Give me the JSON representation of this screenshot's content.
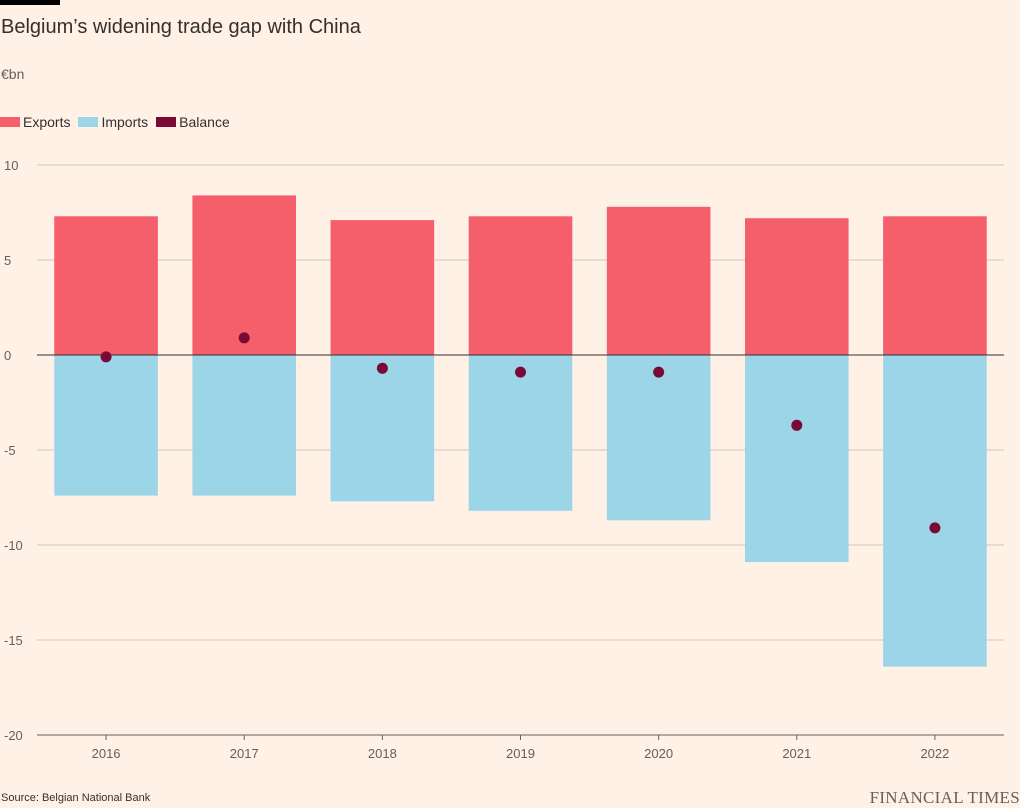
{
  "title": "Belgium’s widening trade gap with China",
  "unit": "€bn",
  "source": "Source: Belgian National Bank",
  "brand": "FINANCIAL TIMES",
  "legend": [
    {
      "label": "Exports",
      "color": "#F55F6C"
    },
    {
      "label": "Imports",
      "color": "#9DD5E8"
    },
    {
      "label": "Balance",
      "color": "#7A0A35"
    }
  ],
  "chart_data": {
    "type": "bar",
    "categories": [
      "2016",
      "2017",
      "2018",
      "2019",
      "2020",
      "2021",
      "2022"
    ],
    "series": [
      {
        "name": "Exports",
        "values": [
          7.3,
          8.4,
          7.1,
          7.3,
          7.8,
          7.2,
          7.3
        ],
        "color": "#F55F6C"
      },
      {
        "name": "Imports",
        "values": [
          -7.4,
          -7.4,
          -7.7,
          -8.2,
          -8.7,
          -10.9,
          -16.4
        ],
        "color": "#9DD5E8"
      },
      {
        "name": "Balance",
        "values": [
          -0.1,
          0.9,
          -0.7,
          -0.9,
          -0.9,
          -3.7,
          -9.1
        ],
        "color": "#7A0A35",
        "mark": "point"
      }
    ],
    "ylim": [
      -20,
      10
    ],
    "yticks": [
      10,
      5,
      0,
      -5,
      -10,
      -15,
      -20
    ],
    "ytick_labels": [
      "10",
      "5",
      "0",
      "-5",
      "-10",
      "-15",
      "-20"
    ],
    "grid": true,
    "legend_position": "top-left",
    "xlabel": "",
    "ylabel": ""
  }
}
